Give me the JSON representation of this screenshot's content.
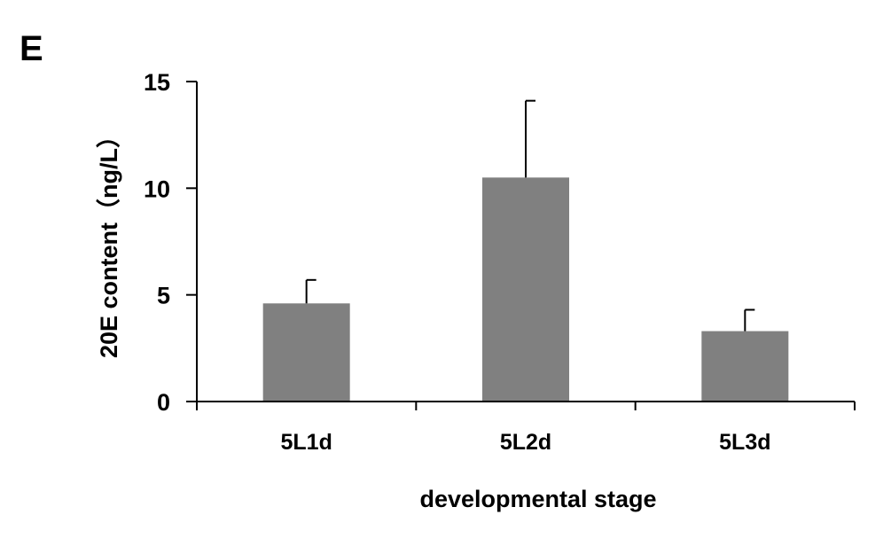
{
  "panel_label": "E",
  "colors": {
    "bar": "#808080",
    "axis": "#000000",
    "error": "#000000"
  },
  "chart_data": {
    "type": "bar",
    "title": "",
    "xlabel": "developmental stage",
    "ylabel": "20E content（ng/L）",
    "categories": [
      "5L1d",
      "5L2d",
      "5L3d"
    ],
    "values": [
      4.6,
      10.5,
      3.3
    ],
    "errors": [
      1.1,
      3.6,
      1.0
    ],
    "ylim": [
      0,
      15
    ],
    "yticks": [
      0,
      5,
      10,
      15
    ],
    "ytick_labels": [
      "0",
      "5",
      "10",
      "15"
    ],
    "grid": false,
    "legend": "none"
  }
}
